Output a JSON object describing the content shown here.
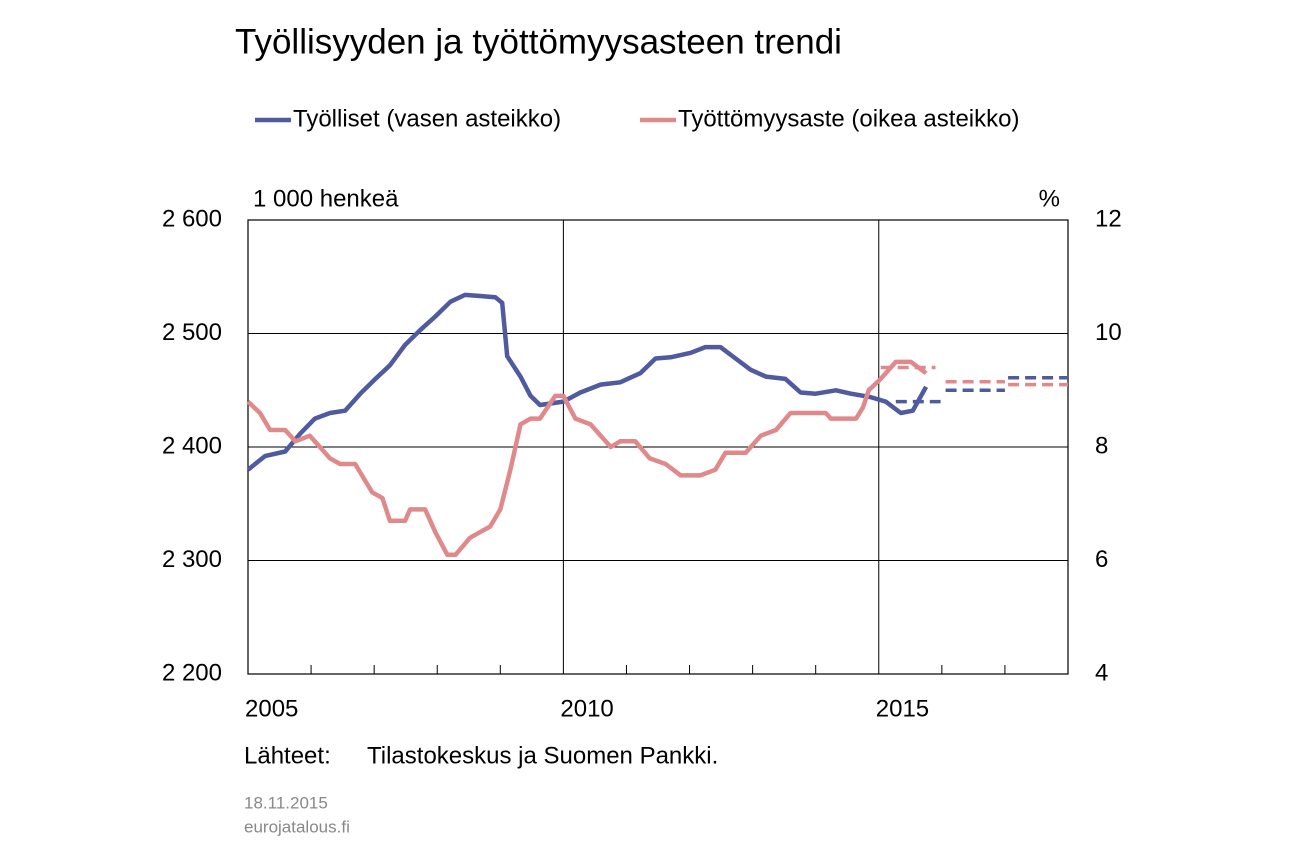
{
  "chart_data": {
    "type": "line",
    "title": "Työllisyyden ja työttömyysasteen trendi",
    "y_label": "1 000 henkeä",
    "y2_label": "%",
    "source": {
      "label": "Lähteet:",
      "text": "Tilastokeskus ja Suomen Pankki."
    },
    "footer": [
      "18.11.2015",
      "eurojatalous.fi"
    ],
    "xlim": [
      2005,
      2018
    ],
    "xticks": [
      2005,
      2010,
      2015
    ],
    "xminor_ticks": [
      2006,
      2007,
      2008,
      2009,
      2011,
      2012,
      2013,
      2014,
      2016,
      2017
    ],
    "ylim": [
      2200,
      2600
    ],
    "yticks": [
      {
        "value": 2200,
        "label": "2 200"
      },
      {
        "value": 2300,
        "label": "2 300"
      },
      {
        "value": 2400,
        "label": "2 400"
      },
      {
        "value": 2500,
        "label": "2 500"
      },
      {
        "value": 2600,
        "label": "2 600"
      }
    ],
    "y2lim": [
      4,
      12
    ],
    "y2ticks": [
      4,
      6,
      8,
      10,
      12
    ],
    "grid": true,
    "series": [
      {
        "name": "Työlliset (vasen asteikko)",
        "color": "#4f5a9f",
        "axis": "y",
        "x": [
          2005.0,
          2005.27,
          2005.59,
          2005.83,
          2006.06,
          2006.3,
          2006.54,
          2006.78,
          2007.02,
          2007.25,
          2007.49,
          2007.73,
          2007.97,
          2008.21,
          2008.44,
          2008.68,
          2008.92,
          2009.03,
          2009.11,
          2009.32,
          2009.48,
          2009.63,
          2010.0,
          2010.27,
          2010.59,
          2010.9,
          2011.22,
          2011.46,
          2011.7,
          2012.02,
          2012.25,
          2012.49,
          2012.73,
          2012.97,
          2013.21,
          2013.52,
          2013.76,
          2014.0,
          2014.32,
          2014.56,
          2014.87,
          2015.11,
          2015.35,
          2015.54,
          2015.75
        ],
        "values": [
          2380,
          2392,
          2396,
          2412,
          2425,
          2430,
          2432,
          2447,
          2460,
          2472,
          2490,
          2503,
          2515,
          2528,
          2534,
          2533,
          2532,
          2527,
          2480,
          2462,
          2445,
          2437,
          2440,
          2448,
          2455,
          2457,
          2465,
          2478,
          2479,
          2483,
          2488,
          2488,
          2478,
          2468,
          2462,
          2460,
          2448,
          2447,
          2450,
          2447,
          2444,
          2440,
          2430,
          2432,
          2453
        ],
        "forecast": {
          "x": [
            2015.27,
            2015.98,
            2016.02,
            2016.06,
            2017.0,
            2017.02,
            2017.05,
            2018.0
          ],
          "values": [
            2440,
            2440,
            null,
            2450,
            2450,
            null,
            2461,
            2461
          ]
        }
      },
      {
        "name": "Työttömyysaste (oikea asteikko)",
        "color": "#e0898b",
        "axis": "y2",
        "x": [
          2005.0,
          2005.19,
          2005.35,
          2005.59,
          2005.75,
          2005.98,
          2006.14,
          2006.3,
          2006.46,
          2006.7,
          2006.86,
          2006.97,
          2007.13,
          2007.25,
          2007.49,
          2007.57,
          2007.81,
          2007.97,
          2008.16,
          2008.29,
          2008.52,
          2008.68,
          2008.84,
          2009.0,
          2009.16,
          2009.32,
          2009.48,
          2009.63,
          2009.87,
          2010.0,
          2010.19,
          2010.43,
          2010.75,
          2010.9,
          2011.14,
          2011.37,
          2011.62,
          2011.86,
          2012.17,
          2012.41,
          2012.57,
          2012.89,
          2013.13,
          2013.37,
          2013.6,
          2013.76,
          2014.16,
          2014.24,
          2014.64,
          2014.75,
          2014.84,
          2015.03,
          2015.27,
          2015.51,
          2015.75
        ],
        "values": [
          8.8,
          8.6,
          8.3,
          8.3,
          8.1,
          8.2,
          8.0,
          7.8,
          7.7,
          7.7,
          7.4,
          7.2,
          7.1,
          6.7,
          6.7,
          6.9,
          6.9,
          6.5,
          6.1,
          6.1,
          6.4,
          6.5,
          6.6,
          6.9,
          7.6,
          8.4,
          8.5,
          8.5,
          8.9,
          8.9,
          8.5,
          8.4,
          8.0,
          8.1,
          8.1,
          7.8,
          7.7,
          7.5,
          7.5,
          7.6,
          7.9,
          7.9,
          8.2,
          8.3,
          8.6,
          8.6,
          8.6,
          8.5,
          8.5,
          8.7,
          9.0,
          9.2,
          9.5,
          9.5,
          9.3
        ],
        "forecast": {
          "x": [
            2015.03,
            2015.9,
            2016.0,
            2016.06,
            2017.0,
            2017.02,
            2017.05,
            2018.0
          ],
          "values": [
            9.4,
            9.4,
            null,
            9.15,
            9.15,
            null,
            9.1,
            9.1
          ]
        }
      }
    ]
  }
}
